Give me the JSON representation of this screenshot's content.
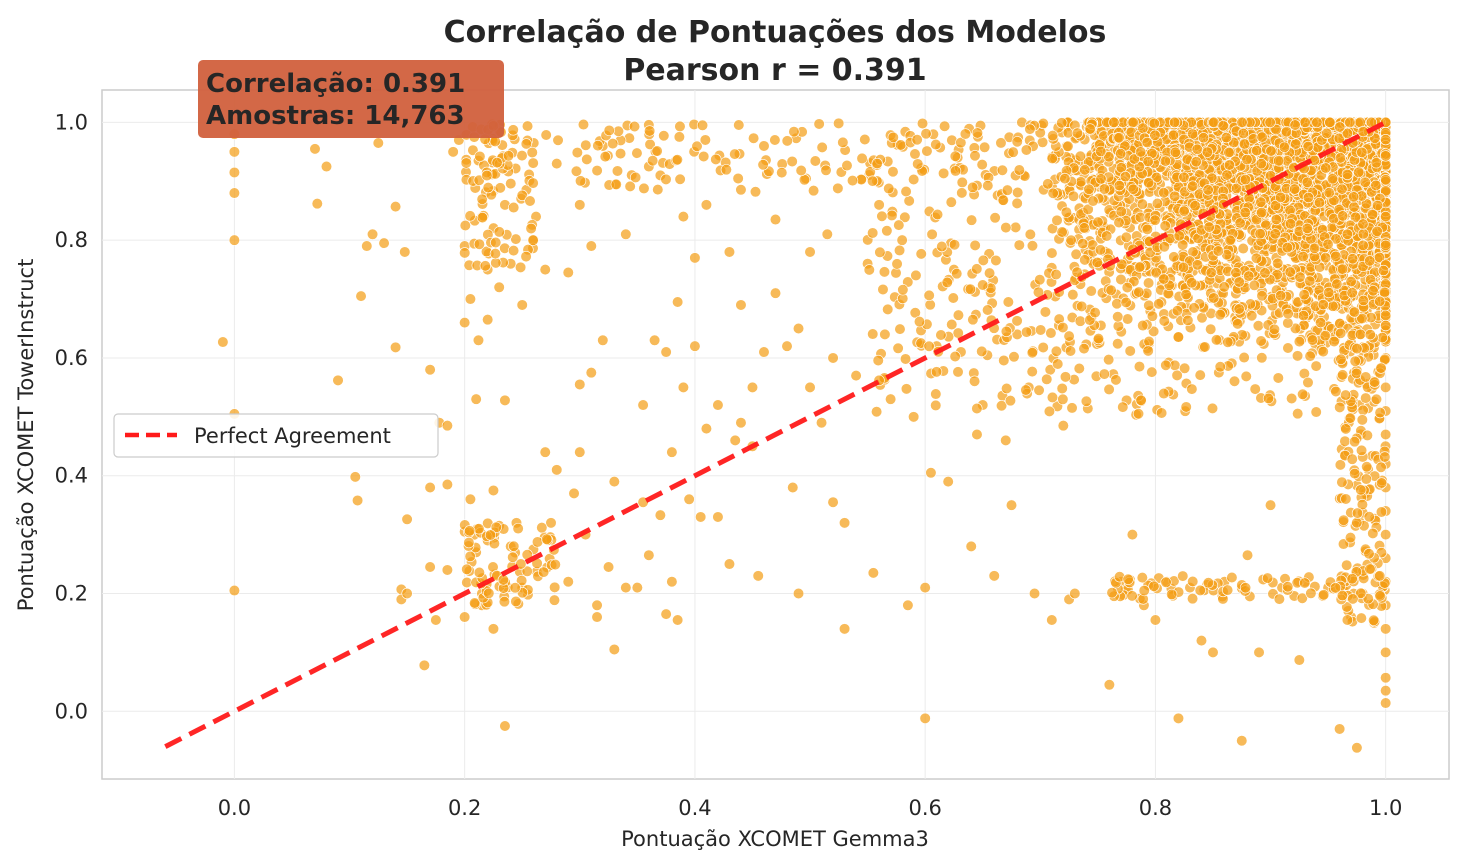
{
  "chart_data": {
    "type": "scatter",
    "title": "Correlação de Pontuações dos Modelos",
    "subtitle": "Pearson r = 0.391",
    "xlabel": "Pontuação XCOMET Gemma3",
    "ylabel": "Pontuação XCOMET TowerInstruct",
    "xlim": [
      -0.115,
      1.055
    ],
    "ylim": [
      -0.115,
      1.055
    ],
    "xticks": [
      "0.0",
      "0.2",
      "0.4",
      "0.6",
      "0.8",
      "1.0"
    ],
    "yticks": [
      "0.0",
      "0.2",
      "0.4",
      "0.6",
      "0.8",
      "1.0"
    ],
    "xtick_values": [
      0.0,
      0.2,
      0.4,
      0.6,
      0.8,
      1.0
    ],
    "ytick_values": [
      0.0,
      0.2,
      0.4,
      0.6,
      0.8,
      1.0
    ],
    "grid": true,
    "legend_position": "center-left",
    "series": [
      {
        "name": "",
        "kind": "scatter",
        "color": "#f39c12",
        "points": [
          [
            -0.01,
            0.627
          ],
          [
            0.0,
            0.98
          ],
          [
            0.0,
            0.95
          ],
          [
            0.0,
            0.915
          ],
          [
            0.0,
            0.88
          ],
          [
            0.0,
            0.8
          ],
          [
            0.0,
            0.505
          ],
          [
            0.0,
            0.205
          ],
          [
            0.07,
            0.955
          ],
          [
            0.072,
            0.862
          ],
          [
            0.08,
            0.925
          ],
          [
            0.09,
            0.562
          ],
          [
            0.105,
            0.398
          ],
          [
            0.107,
            0.358
          ],
          [
            0.11,
            0.705
          ],
          [
            0.115,
            0.79
          ],
          [
            0.12,
            0.81
          ],
          [
            0.125,
            0.965
          ],
          [
            0.13,
            0.795
          ],
          [
            0.14,
            0.618
          ],
          [
            0.14,
            0.857
          ],
          [
            0.145,
            0.207
          ],
          [
            0.145,
            0.19
          ],
          [
            0.148,
            0.78
          ],
          [
            0.15,
            0.2
          ],
          [
            0.15,
            0.326
          ],
          [
            0.165,
            0.078
          ],
          [
            0.17,
            0.58
          ],
          [
            0.17,
            0.38
          ],
          [
            0.17,
            0.245
          ],
          [
            0.175,
            0.155
          ],
          [
            0.178,
            0.49
          ],
          [
            0.185,
            0.24
          ],
          [
            0.185,
            0.385
          ],
          [
            0.185,
            0.485
          ],
          [
            0.19,
            0.95
          ],
          [
            0.195,
            0.97
          ],
          [
            0.2,
            0.66
          ],
          [
            0.2,
            0.79
          ],
          [
            0.2,
            0.305
          ],
          [
            0.2,
            0.16
          ],
          [
            0.205,
            0.36
          ],
          [
            0.205,
            0.7
          ],
          [
            0.21,
            0.53
          ],
          [
            0.21,
            0.27
          ],
          [
            0.212,
            0.63
          ],
          [
            0.215,
            0.2
          ],
          [
            0.215,
            0.18
          ],
          [
            0.22,
            0.75
          ],
          [
            0.22,
            0.665
          ],
          [
            0.22,
            0.29
          ],
          [
            0.225,
            0.14
          ],
          [
            0.225,
            0.375
          ],
          [
            0.23,
            0.315
          ],
          [
            0.23,
            0.72
          ],
          [
            0.235,
            0.86
          ],
          [
            0.235,
            0.528
          ],
          [
            0.235,
            -0.025
          ],
          [
            0.24,
            0.28
          ],
          [
            0.24,
            0.76
          ],
          [
            0.245,
            0.32
          ],
          [
            0.25,
            0.21
          ],
          [
            0.25,
            0.69
          ],
          [
            0.255,
            0.198
          ],
          [
            0.26,
            0.8
          ],
          [
            0.26,
            0.965
          ],
          [
            0.262,
            0.84
          ],
          [
            0.27,
            0.75
          ],
          [
            0.27,
            0.44
          ],
          [
            0.275,
            0.32
          ],
          [
            0.28,
            0.41
          ],
          [
            0.28,
            0.93
          ],
          [
            0.29,
            0.22
          ],
          [
            0.29,
            0.745
          ],
          [
            0.295,
            0.37
          ],
          [
            0.3,
            0.44
          ],
          [
            0.3,
            0.555
          ],
          [
            0.3,
            0.86
          ],
          [
            0.305,
            0.3
          ],
          [
            0.31,
            0.79
          ],
          [
            0.31,
            0.575
          ],
          [
            0.315,
            0.16
          ],
          [
            0.315,
            0.18
          ],
          [
            0.32,
            0.63
          ],
          [
            0.32,
            0.96
          ],
          [
            0.325,
            0.245
          ],
          [
            0.33,
            0.39
          ],
          [
            0.33,
            0.105
          ],
          [
            0.34,
            0.21
          ],
          [
            0.34,
            0.81
          ],
          [
            0.35,
            0.21
          ],
          [
            0.355,
            0.355
          ],
          [
            0.355,
            0.52
          ],
          [
            0.36,
            0.265
          ],
          [
            0.36,
            0.925
          ],
          [
            0.365,
            0.63
          ],
          [
            0.37,
            0.333
          ],
          [
            0.37,
            0.91
          ],
          [
            0.375,
            0.61
          ],
          [
            0.375,
            0.165
          ],
          [
            0.38,
            0.44
          ],
          [
            0.38,
            0.22
          ],
          [
            0.385,
            0.155
          ],
          [
            0.385,
            0.695
          ],
          [
            0.39,
            0.55
          ],
          [
            0.39,
            0.84
          ],
          [
            0.395,
            0.36
          ],
          [
            0.4,
            0.77
          ],
          [
            0.4,
            0.62
          ],
          [
            0.405,
            0.33
          ],
          [
            0.41,
            0.48
          ],
          [
            0.41,
            0.86
          ],
          [
            0.42,
            0.33
          ],
          [
            0.42,
            0.52
          ],
          [
            0.43,
            0.25
          ],
          [
            0.43,
            0.78
          ],
          [
            0.435,
            0.46
          ],
          [
            0.44,
            0.49
          ],
          [
            0.44,
            0.69
          ],
          [
            0.45,
            0.55
          ],
          [
            0.45,
            0.45
          ],
          [
            0.455,
            0.23
          ],
          [
            0.46,
            0.61
          ],
          [
            0.46,
            0.96
          ],
          [
            0.47,
            0.71
          ],
          [
            0.47,
            0.835
          ],
          [
            0.48,
            0.62
          ],
          [
            0.485,
            0.38
          ],
          [
            0.49,
            0.2
          ],
          [
            0.49,
            0.65
          ],
          [
            0.5,
            0.55
          ],
          [
            0.5,
            0.78
          ],
          [
            0.51,
            0.49
          ],
          [
            0.515,
            0.81
          ],
          [
            0.52,
            0.355
          ],
          [
            0.52,
            0.6
          ],
          [
            0.53,
            0.14
          ],
          [
            0.53,
            0.32
          ],
          [
            0.54,
            0.57
          ],
          [
            0.55,
            0.76
          ],
          [
            0.555,
            0.235
          ],
          [
            0.56,
            0.86
          ],
          [
            0.565,
            0.64
          ],
          [
            0.57,
            0.53
          ],
          [
            0.58,
            0.8
          ],
          [
            0.585,
            0.18
          ],
          [
            0.59,
            0.5
          ],
          [
            0.6,
            -0.012
          ],
          [
            0.6,
            0.21
          ],
          [
            0.605,
            0.405
          ],
          [
            0.61,
            0.62
          ],
          [
            0.62,
            0.39
          ],
          [
            0.625,
            0.75
          ],
          [
            0.64,
            0.28
          ],
          [
            0.645,
            0.47
          ],
          [
            0.65,
            0.52
          ],
          [
            0.66,
            0.23
          ],
          [
            0.67,
            0.46
          ],
          [
            0.675,
            0.35
          ],
          [
            0.68,
            0.64
          ],
          [
            0.69,
            0.55
          ],
          [
            0.695,
            0.2
          ],
          [
            0.71,
            0.155
          ],
          [
            0.72,
            0.485
          ],
          [
            0.725,
            0.19
          ],
          [
            0.73,
            0.2
          ],
          [
            0.76,
            0.045
          ],
          [
            0.77,
            0.22
          ],
          [
            0.78,
            0.3
          ],
          [
            0.79,
            0.18
          ],
          [
            0.8,
            0.155
          ],
          [
            0.81,
            0.22
          ],
          [
            0.82,
            -0.012
          ],
          [
            0.83,
            0.21
          ],
          [
            0.84,
            0.12
          ],
          [
            0.85,
            0.1
          ],
          [
            0.86,
            0.22
          ],
          [
            0.875,
            -0.05
          ],
          [
            0.88,
            0.265
          ],
          [
            0.89,
            0.1
          ],
          [
            0.9,
            0.35
          ],
          [
            0.91,
            0.21
          ],
          [
            0.925,
            0.087
          ],
          [
            0.93,
            0.22
          ],
          [
            0.95,
            0.21
          ],
          [
            0.96,
            -0.03
          ],
          [
            0.97,
            0.16
          ],
          [
            0.975,
            -0.062
          ],
          [
            0.98,
            0.2
          ],
          [
            0.99,
            0.15
          ],
          [
            1.0,
            0.014
          ],
          [
            1.0,
            0.035
          ],
          [
            1.0,
            0.057
          ],
          [
            1.0,
            0.1
          ],
          [
            1.0,
            0.14
          ],
          [
            1.0,
            0.18
          ],
          [
            1.0,
            0.22
          ],
          [
            1.0,
            0.26
          ],
          [
            1.0,
            0.3
          ],
          [
            1.0,
            0.34
          ],
          [
            1.0,
            0.38
          ],
          [
            1.0,
            0.42
          ],
          [
            1.0,
            0.47
          ],
          [
            1.0,
            0.51
          ],
          [
            1.0,
            0.55
          ],
          [
            1.0,
            0.6
          ],
          [
            1.0,
            0.64
          ]
        ]
      }
    ],
    "reference_line": {
      "name": "Perfect Agreement",
      "color": "#ff1a1a",
      "x": [
        -0.06,
        1.0
      ],
      "y": [
        -0.06,
        1.0
      ]
    },
    "annotation": {
      "lines": [
        "Correlação: 0.391",
        "Amostras: 14,763"
      ],
      "color": "#d1603d"
    }
  }
}
